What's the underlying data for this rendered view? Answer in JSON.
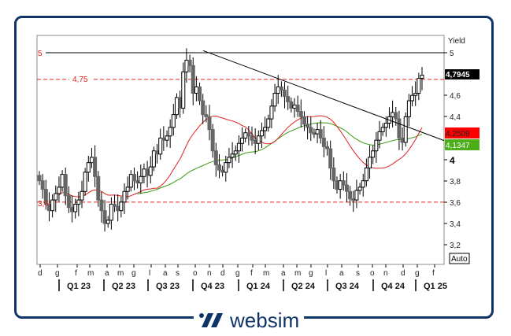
{
  "chart_data": {
    "type": "candlestick",
    "title": "",
    "ylabel": "Yield",
    "ylim": [
      3.05,
      5.15
    ],
    "yticks": [
      "5",
      "4,6",
      "4,4",
      "4",
      "3,8",
      "3,6",
      "3,4",
      "3,2"
    ],
    "ytick_values": [
      5,
      4.6,
      4.4,
      4.0,
      3.8,
      3.6,
      3.4,
      3.2
    ],
    "month_labels": [
      "d",
      "g",
      "f",
      "m",
      "a",
      "m",
      "g",
      "l",
      "a",
      "s",
      "o",
      "n",
      "d",
      "g",
      "f",
      "m",
      "a",
      "m",
      "g",
      "l",
      "a",
      "s",
      "o",
      "n",
      "d",
      "g",
      "f"
    ],
    "quarter_labels": [
      "Q1 23",
      "Q2 23",
      "Q3 23",
      "Q4 23",
      "Q1 24",
      "Q2 24",
      "Q3 24",
      "Q4 24",
      "Q1 25"
    ],
    "horizontal_levels": [
      {
        "value": 5.0,
        "label": "5",
        "style": "solid",
        "color": "#000000"
      },
      {
        "value": 4.75,
        "label": "4,75",
        "style": "dashed",
        "color": "#e0201c"
      },
      {
        "value": 3.6,
        "label": "3,6",
        "style": "dashed",
        "color": "#e0201c"
      }
    ],
    "trendline": {
      "from": {
        "week": 44,
        "value": 5.02
      },
      "to": {
        "week": 117,
        "value": 4.28
      },
      "color": "#000000"
    },
    "last_price": {
      "value": "4,7945",
      "bg": "#000000"
    },
    "ma_short": {
      "value": "4,2509",
      "bg": "#ff0000",
      "color": "#e0201c"
    },
    "ma_long": {
      "value": "4,1347",
      "bg": "#4caf1a",
      "color": "#3a9a12"
    },
    "candles_weekly_close": [
      3.8,
      3.72,
      3.58,
      3.52,
      3.62,
      3.68,
      3.74,
      3.86,
      3.66,
      3.55,
      3.51,
      3.58,
      3.62,
      3.7,
      3.88,
      3.97,
      4.02,
      3.84,
      3.62,
      3.52,
      3.4,
      3.43,
      3.58,
      3.56,
      3.52,
      3.6,
      3.7,
      3.74,
      3.86,
      3.8,
      3.78,
      3.84,
      3.91,
      3.85,
      3.93,
      4.08,
      4.05,
      4.2,
      4.18,
      4.22,
      4.3,
      4.42,
      4.58,
      4.48,
      4.82,
      4.93,
      4.88,
      4.62,
      4.68,
      4.55,
      4.42,
      4.4,
      4.28,
      4.08,
      3.95,
      3.9,
      3.88,
      3.97,
      4.02,
      4.05,
      4.08,
      4.15,
      4.2,
      4.25,
      4.22,
      4.18,
      4.15,
      4.22,
      4.27,
      4.3,
      4.38,
      4.5,
      4.62,
      4.68,
      4.65,
      4.59,
      4.54,
      4.48,
      4.51,
      4.45,
      4.4,
      4.33,
      4.3,
      4.25,
      4.24,
      4.28,
      4.2,
      4.12,
      4.1,
      3.92,
      3.8,
      3.72,
      3.8,
      3.76,
      3.7,
      3.63,
      3.62,
      3.71,
      3.74,
      3.8,
      3.92,
      4.02,
      4.08,
      4.18,
      4.26,
      4.3,
      4.34,
      4.4,
      4.44,
      4.38,
      4.2,
      4.16,
      4.4,
      4.55,
      4.6,
      4.62,
      4.76,
      4.79
    ]
  },
  "axis": {
    "y_title": "Yield",
    "auto_button": "Auto",
    "tick_5_label": "5",
    "tick_46": "4,6",
    "tick_44": "4,4",
    "tick_4": "4",
    "tick_38": "3,8",
    "tick_36": "3,6",
    "tick_34": "3,4",
    "tick_32": "3,2"
  },
  "levels": {
    "level_5_label": "5",
    "level_475_label": "4,75",
    "level_36_label": "3,6"
  },
  "price_tags": {
    "last": "4,7945",
    "ma_red": "4,2509",
    "ma_green": "4,1347"
  },
  "brand": {
    "name": "websim",
    "color": "#0f3468"
  }
}
